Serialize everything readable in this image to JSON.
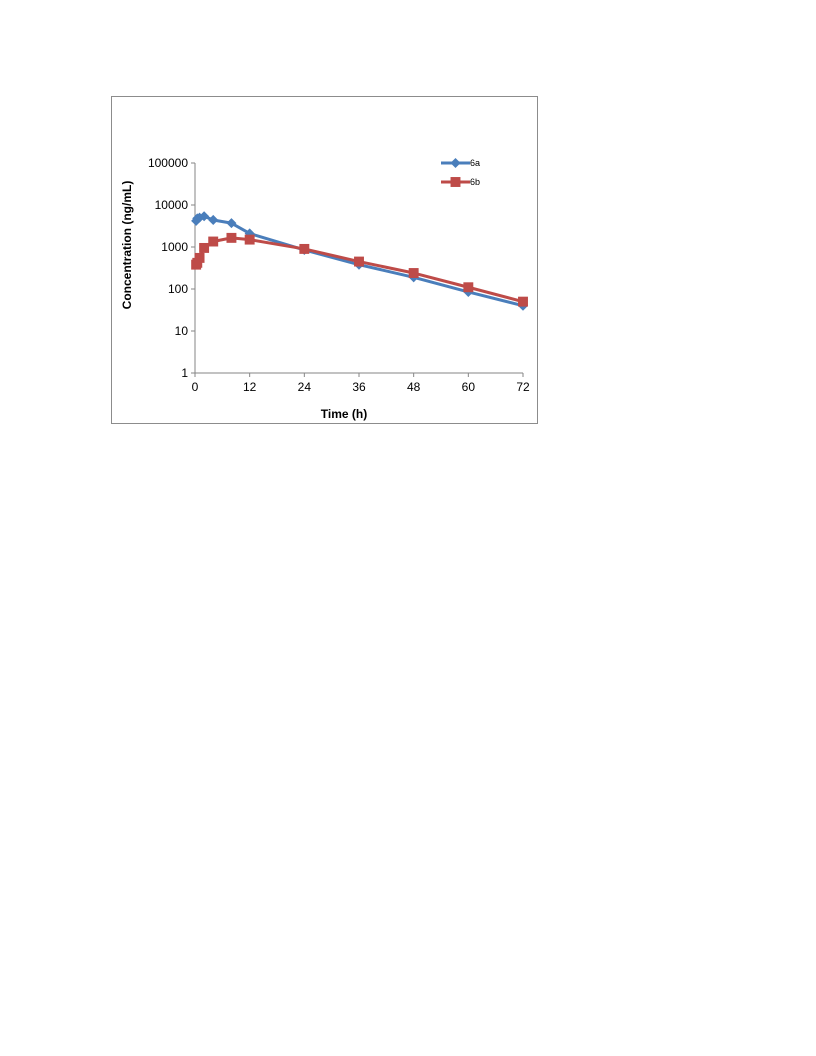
{
  "chart_data": {
    "type": "line",
    "title": "",
    "xlabel": "Time (h)",
    "ylabel": "Concentration (ng/mL)",
    "xlim": [
      0,
      72
    ],
    "ylim": [
      1,
      100000
    ],
    "yscale": "log",
    "grid": false,
    "legend_position": "top-right",
    "x_ticks": [
      0,
      12,
      24,
      36,
      48,
      60,
      72
    ],
    "x_tick_labels": [
      "0",
      "12",
      "24",
      "36",
      "48",
      "60",
      "72"
    ],
    "y_ticks": [
      1,
      10,
      100,
      1000,
      10000,
      100000
    ],
    "y_tick_labels": [
      "1",
      "10",
      "100",
      "1000",
      "10000",
      "100000"
    ],
    "series": [
      {
        "name": "6a",
        "color": "#4a7ebb",
        "marker": "diamond",
        "points": [
          {
            "x": 0.25,
            "y": 4200
          },
          {
            "x": 0.5,
            "y": 4800
          },
          {
            "x": 1,
            "y": 5000
          },
          {
            "x": 2,
            "y": 5400
          },
          {
            "x": 4,
            "y": 4400
          },
          {
            "x": 8,
            "y": 3700
          },
          {
            "x": 12,
            "y": 2100
          },
          {
            "x": 24,
            "y": 850
          },
          {
            "x": 36,
            "y": 380
          },
          {
            "x": 48,
            "y": 190
          },
          {
            "x": 60,
            "y": 85
          },
          {
            "x": 72,
            "y": 40
          }
        ]
      },
      {
        "name": "6b",
        "color": "#be4b48",
        "marker": "square",
        "points": [
          {
            "x": 0.25,
            "y": 380
          },
          {
            "x": 0.5,
            "y": 420
          },
          {
            "x": 1,
            "y": 550
          },
          {
            "x": 2,
            "y": 950
          },
          {
            "x": 4,
            "y": 1350
          },
          {
            "x": 8,
            "y": 1650
          },
          {
            "x": 12,
            "y": 1500
          },
          {
            "x": 24,
            "y": 900
          },
          {
            "x": 36,
            "y": 450
          },
          {
            "x": 48,
            "y": 240
          },
          {
            "x": 60,
            "y": 110
          },
          {
            "x": 72,
            "y": 50
          }
        ]
      }
    ]
  }
}
